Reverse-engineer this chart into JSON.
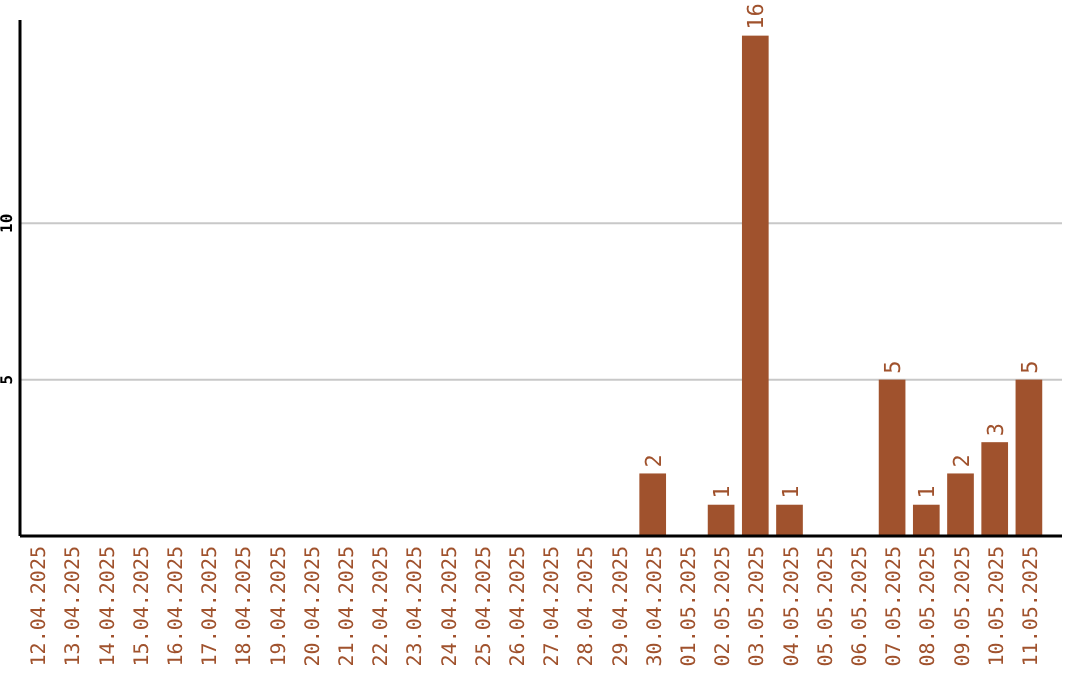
{
  "chart_data": {
    "type": "bar",
    "categories": [
      "12.04.2025",
      "13.04.2025",
      "14.04.2025",
      "15.04.2025",
      "16.04.2025",
      "17.04.2025",
      "18.04.2025",
      "19.04.2025",
      "20.04.2025",
      "21.04.2025",
      "22.04.2025",
      "23.04.2025",
      "24.04.2025",
      "25.04.2025",
      "26.04.2025",
      "27.04.2025",
      "28.04.2025",
      "29.04.2025",
      "30.04.2025",
      "01.05.2025",
      "02.05.2025",
      "03.05.2025",
      "04.05.2025",
      "05.05.2025",
      "06.05.2025",
      "07.05.2025",
      "08.05.2025",
      "09.05.2025",
      "10.05.2025",
      "11.05.2025"
    ],
    "values": [
      0,
      0,
      0,
      0,
      0,
      0,
      0,
      0,
      0,
      0,
      0,
      0,
      0,
      0,
      0,
      0,
      0,
      0,
      2,
      0,
      1,
      16,
      1,
      0,
      0,
      5,
      1,
      2,
      3,
      5
    ],
    "value_labels": [
      null,
      null,
      null,
      null,
      null,
      null,
      null,
      null,
      null,
      null,
      null,
      null,
      null,
      null,
      null,
      null,
      null,
      null,
      "2",
      null,
      "1",
      "16",
      "1",
      null,
      null,
      "5",
      "1",
      "2",
      "3",
      "5"
    ],
    "color": "#a0522d",
    "ylim": [
      0,
      16.5
    ],
    "yticks": [
      5,
      10
    ],
    "grid": "y"
  }
}
